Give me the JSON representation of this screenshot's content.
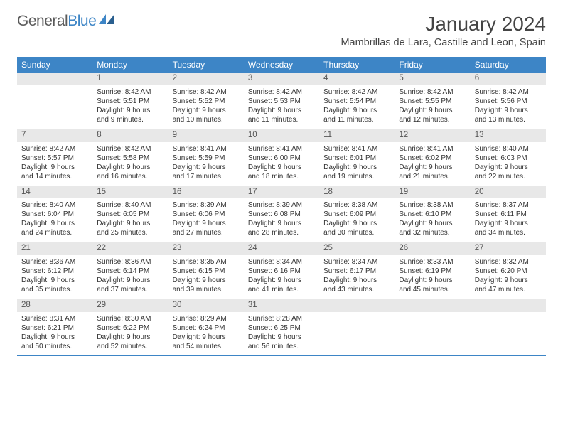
{
  "brand": {
    "part1": "General",
    "part2": "Blue"
  },
  "title": "January 2024",
  "location": "Mambrillas de Lara, Castille and Leon, Spain",
  "colors": {
    "accent": "#3d85c6",
    "header_bg": "#3d85c6",
    "header_text": "#ffffff",
    "daynum_bg": "#e8e8e8",
    "border": "#3d85c6",
    "text": "#333333"
  },
  "dayHeaders": [
    "Sunday",
    "Monday",
    "Tuesday",
    "Wednesday",
    "Thursday",
    "Friday",
    "Saturday"
  ],
  "layout": {
    "columns": 7,
    "rows": 5,
    "header_fontsize": 12,
    "daynum_fontsize": 11.5,
    "detail_fontsize": 10,
    "title_fontsize": 28,
    "location_fontsize": 14.5
  },
  "weeks": [
    [
      {
        "day": "",
        "sunrise": "",
        "sunset": "",
        "daylight": ""
      },
      {
        "day": "1",
        "sunrise": "Sunrise: 8:42 AM",
        "sunset": "Sunset: 5:51 PM",
        "daylight": "Daylight: 9 hours and 9 minutes."
      },
      {
        "day": "2",
        "sunrise": "Sunrise: 8:42 AM",
        "sunset": "Sunset: 5:52 PM",
        "daylight": "Daylight: 9 hours and 10 minutes."
      },
      {
        "day": "3",
        "sunrise": "Sunrise: 8:42 AM",
        "sunset": "Sunset: 5:53 PM",
        "daylight": "Daylight: 9 hours and 11 minutes."
      },
      {
        "day": "4",
        "sunrise": "Sunrise: 8:42 AM",
        "sunset": "Sunset: 5:54 PM",
        "daylight": "Daylight: 9 hours and 11 minutes."
      },
      {
        "day": "5",
        "sunrise": "Sunrise: 8:42 AM",
        "sunset": "Sunset: 5:55 PM",
        "daylight": "Daylight: 9 hours and 12 minutes."
      },
      {
        "day": "6",
        "sunrise": "Sunrise: 8:42 AM",
        "sunset": "Sunset: 5:56 PM",
        "daylight": "Daylight: 9 hours and 13 minutes."
      }
    ],
    [
      {
        "day": "7",
        "sunrise": "Sunrise: 8:42 AM",
        "sunset": "Sunset: 5:57 PM",
        "daylight": "Daylight: 9 hours and 14 minutes."
      },
      {
        "day": "8",
        "sunrise": "Sunrise: 8:42 AM",
        "sunset": "Sunset: 5:58 PM",
        "daylight": "Daylight: 9 hours and 16 minutes."
      },
      {
        "day": "9",
        "sunrise": "Sunrise: 8:41 AM",
        "sunset": "Sunset: 5:59 PM",
        "daylight": "Daylight: 9 hours and 17 minutes."
      },
      {
        "day": "10",
        "sunrise": "Sunrise: 8:41 AM",
        "sunset": "Sunset: 6:00 PM",
        "daylight": "Daylight: 9 hours and 18 minutes."
      },
      {
        "day": "11",
        "sunrise": "Sunrise: 8:41 AM",
        "sunset": "Sunset: 6:01 PM",
        "daylight": "Daylight: 9 hours and 19 minutes."
      },
      {
        "day": "12",
        "sunrise": "Sunrise: 8:41 AM",
        "sunset": "Sunset: 6:02 PM",
        "daylight": "Daylight: 9 hours and 21 minutes."
      },
      {
        "day": "13",
        "sunrise": "Sunrise: 8:40 AM",
        "sunset": "Sunset: 6:03 PM",
        "daylight": "Daylight: 9 hours and 22 minutes."
      }
    ],
    [
      {
        "day": "14",
        "sunrise": "Sunrise: 8:40 AM",
        "sunset": "Sunset: 6:04 PM",
        "daylight": "Daylight: 9 hours and 24 minutes."
      },
      {
        "day": "15",
        "sunrise": "Sunrise: 8:40 AM",
        "sunset": "Sunset: 6:05 PM",
        "daylight": "Daylight: 9 hours and 25 minutes."
      },
      {
        "day": "16",
        "sunrise": "Sunrise: 8:39 AM",
        "sunset": "Sunset: 6:06 PM",
        "daylight": "Daylight: 9 hours and 27 minutes."
      },
      {
        "day": "17",
        "sunrise": "Sunrise: 8:39 AM",
        "sunset": "Sunset: 6:08 PM",
        "daylight": "Daylight: 9 hours and 28 minutes."
      },
      {
        "day": "18",
        "sunrise": "Sunrise: 8:38 AM",
        "sunset": "Sunset: 6:09 PM",
        "daylight": "Daylight: 9 hours and 30 minutes."
      },
      {
        "day": "19",
        "sunrise": "Sunrise: 8:38 AM",
        "sunset": "Sunset: 6:10 PM",
        "daylight": "Daylight: 9 hours and 32 minutes."
      },
      {
        "day": "20",
        "sunrise": "Sunrise: 8:37 AM",
        "sunset": "Sunset: 6:11 PM",
        "daylight": "Daylight: 9 hours and 34 minutes."
      }
    ],
    [
      {
        "day": "21",
        "sunrise": "Sunrise: 8:36 AM",
        "sunset": "Sunset: 6:12 PM",
        "daylight": "Daylight: 9 hours and 35 minutes."
      },
      {
        "day": "22",
        "sunrise": "Sunrise: 8:36 AM",
        "sunset": "Sunset: 6:14 PM",
        "daylight": "Daylight: 9 hours and 37 minutes."
      },
      {
        "day": "23",
        "sunrise": "Sunrise: 8:35 AM",
        "sunset": "Sunset: 6:15 PM",
        "daylight": "Daylight: 9 hours and 39 minutes."
      },
      {
        "day": "24",
        "sunrise": "Sunrise: 8:34 AM",
        "sunset": "Sunset: 6:16 PM",
        "daylight": "Daylight: 9 hours and 41 minutes."
      },
      {
        "day": "25",
        "sunrise": "Sunrise: 8:34 AM",
        "sunset": "Sunset: 6:17 PM",
        "daylight": "Daylight: 9 hours and 43 minutes."
      },
      {
        "day": "26",
        "sunrise": "Sunrise: 8:33 AM",
        "sunset": "Sunset: 6:19 PM",
        "daylight": "Daylight: 9 hours and 45 minutes."
      },
      {
        "day": "27",
        "sunrise": "Sunrise: 8:32 AM",
        "sunset": "Sunset: 6:20 PM",
        "daylight": "Daylight: 9 hours and 47 minutes."
      }
    ],
    [
      {
        "day": "28",
        "sunrise": "Sunrise: 8:31 AM",
        "sunset": "Sunset: 6:21 PM",
        "daylight": "Daylight: 9 hours and 50 minutes."
      },
      {
        "day": "29",
        "sunrise": "Sunrise: 8:30 AM",
        "sunset": "Sunset: 6:22 PM",
        "daylight": "Daylight: 9 hours and 52 minutes."
      },
      {
        "day": "30",
        "sunrise": "Sunrise: 8:29 AM",
        "sunset": "Sunset: 6:24 PM",
        "daylight": "Daylight: 9 hours and 54 minutes."
      },
      {
        "day": "31",
        "sunrise": "Sunrise: 8:28 AM",
        "sunset": "Sunset: 6:25 PM",
        "daylight": "Daylight: 9 hours and 56 minutes."
      },
      {
        "day": "",
        "sunrise": "",
        "sunset": "",
        "daylight": ""
      },
      {
        "day": "",
        "sunrise": "",
        "sunset": "",
        "daylight": ""
      },
      {
        "day": "",
        "sunrise": "",
        "sunset": "",
        "daylight": ""
      }
    ]
  ]
}
